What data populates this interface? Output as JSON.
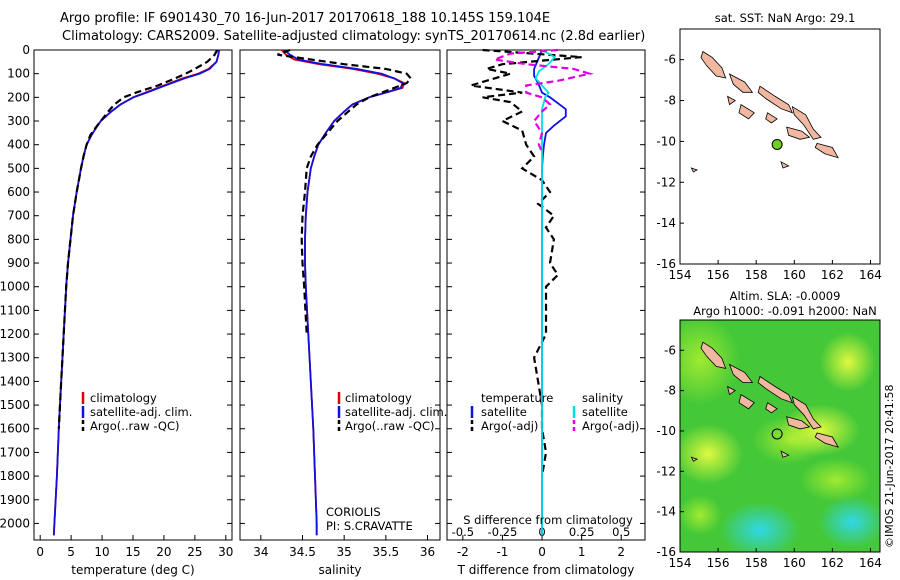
{
  "header": {
    "line1": "Argo profile: IF 6901430_70 16-Jun-2017 20170618_188 10.145S 159.104E",
    "line2": "Climatology: CARS2009. Satellite-adjusted climatology: synTS_20170614.nc (2.8d earlier)"
  },
  "colors": {
    "climatology": "#e00000",
    "satellite": "#1010e0",
    "argo": "#000000",
    "salinity_sat": "#00e0e0",
    "salinity_argo": "#e000e0",
    "land": "#f0b8a0",
    "argo_marker": "#70d020"
  },
  "legend": {
    "climatology": "climatology",
    "satellite_adj": "satellite-adj. clim.",
    "argo_raw": "Argo(..raw -QC)",
    "temperature": "temperature",
    "salinity": "salinity",
    "satellite": "satellite",
    "argo_adj": "Argo(-adj)"
  },
  "annotations": {
    "coriolis": "CORIOLIS",
    "pi": "PI: S.CRAVATTE",
    "s_diff_label": "S difference from climatology",
    "sst_title": "sat. SST: NaN Argo: 29.1",
    "sla_title1": "Altim. SLA: -0.0009",
    "sla_title2": "Argo h1000: -0.091 h2000: NaN",
    "imos_stamp": "©IMOS 21-Jun-2017 20:41:58"
  },
  "chart_data": [
    {
      "type": "line",
      "panel": "temperature",
      "xlabel": "temperature (deg C)",
      "ylabel": "",
      "xlim": [
        -1,
        31
      ],
      "ylim": [
        2070,
        0
      ],
      "xticks": [
        "0",
        "5",
        "10",
        "15",
        "20",
        "25",
        "30"
      ],
      "yticks": [
        "0",
        "100",
        "200",
        "300",
        "400",
        "500",
        "600",
        "700",
        "800",
        "900",
        "1000",
        "1100",
        "1200",
        "1300",
        "1400",
        "1500",
        "1600",
        "1700",
        "1800",
        "1900",
        "2000"
      ],
      "depth": [
        0,
        20,
        50,
        80,
        100,
        120,
        150,
        180,
        200,
        230,
        260,
        300,
        330,
        360,
        400,
        450,
        500,
        600,
        700,
        800,
        900,
        1000,
        1200,
        1400,
        1600,
        1800,
        2000,
        2050
      ],
      "series": [
        {
          "name": "climatology",
          "values": [
            28.9,
            28.8,
            28.5,
            27.2,
            25.5,
            23.0,
            20.0,
            17.0,
            15.0,
            13.0,
            11.5,
            9.8,
            9.0,
            8.3,
            7.5,
            7.0,
            6.6,
            5.9,
            5.3,
            4.9,
            4.5,
            4.2,
            3.8,
            3.4,
            3.0,
            2.7,
            2.3,
            2.2
          ]
        },
        {
          "name": "satellite-adj. clim.",
          "values": [
            28.9,
            28.8,
            28.5,
            27.4,
            25.8,
            23.3,
            20.2,
            17.2,
            15.1,
            13.0,
            11.5,
            9.8,
            9.0,
            8.3,
            7.5,
            7.0,
            6.6,
            5.9,
            5.3,
            4.9,
            4.5,
            4.2,
            3.8,
            3.4,
            3.0,
            2.7,
            2.3,
            2.2
          ]
        },
        {
          "name": "Argo(..raw -QC)",
          "values": [
            28.6,
            28.2,
            27.0,
            25.0,
            23.5,
            21.8,
            19.0,
            15.5,
            13.5,
            12.0,
            11.0,
            9.8,
            8.9,
            8.1,
            7.5,
            7.0,
            6.6,
            5.9,
            5.3,
            4.9,
            4.5,
            4.2,
            3.8,
            3.4,
            3.0,
            null,
            null,
            null
          ]
        }
      ]
    },
    {
      "type": "line",
      "panel": "salinity",
      "xlabel": "salinity",
      "xlim": [
        33.75,
        36.15
      ],
      "ylim": [
        2070,
        0
      ],
      "xticks": [
        "34",
        "34.5",
        "35",
        "35.5",
        "36"
      ],
      "depth": [
        0,
        20,
        40,
        60,
        80,
        100,
        120,
        140,
        160,
        180,
        200,
        230,
        260,
        300,
        350,
        400,
        450,
        500,
        600,
        700,
        800,
        900,
        1000,
        1200,
        1400,
        1600,
        1800,
        2000,
        2050
      ],
      "series": [
        {
          "name": "climatology",
          "values": [
            34.25,
            34.3,
            34.4,
            34.7,
            35.1,
            35.4,
            35.6,
            35.72,
            35.7,
            35.5,
            35.3,
            35.1,
            35.0,
            34.88,
            34.78,
            34.69,
            34.64,
            34.6,
            34.56,
            34.54,
            34.53,
            34.53,
            34.54,
            34.57,
            34.6,
            34.63,
            34.65,
            34.67,
            34.67
          ]
        },
        {
          "name": "satellite-adj. clim.",
          "values": [
            34.28,
            34.35,
            34.45,
            34.75,
            35.15,
            35.45,
            35.6,
            35.7,
            35.68,
            35.5,
            35.3,
            35.1,
            35.0,
            34.88,
            34.78,
            34.69,
            34.64,
            34.6,
            34.56,
            34.54,
            34.53,
            34.53,
            34.54,
            34.57,
            34.6,
            34.63,
            34.65,
            34.67,
            34.67
          ]
        },
        {
          "name": "Argo(..raw -QC)",
          "values": [
            34.35,
            34.2,
            34.6,
            35.0,
            35.5,
            35.75,
            35.8,
            35.75,
            35.6,
            35.45,
            35.3,
            35.15,
            35.05,
            34.92,
            34.8,
            34.68,
            34.6,
            34.55,
            34.53,
            34.5,
            34.49,
            34.5,
            34.52,
            34.55,
            null,
            null,
            null,
            null,
            null
          ]
        }
      ]
    },
    {
      "type": "line",
      "panel": "difference",
      "xlabel": "T difference from climatology",
      "xlabel_top": "S difference from climatology",
      "xlim": [
        -2.4,
        2.6
      ],
      "ylim": [
        2070,
        0
      ],
      "xticks": [
        "-2",
        "-1",
        "0",
        "1",
        "2"
      ],
      "xticks_top": [
        "-0.5",
        "-0.25",
        "0",
        "0.25",
        "0.5"
      ],
      "series": [
        {
          "name": "temperature satellite",
          "depth": [
            0,
            40,
            80,
            110,
            140,
            180,
            200,
            250,
            280,
            320,
            350,
            400,
            450,
            500,
            600,
            700,
            800,
            900,
            1000,
            1200,
            1500,
            1800,
            2050
          ],
          "values": [
            0.0,
            -0.1,
            -0.2,
            -0.2,
            -0.1,
            0.0,
            0.2,
            0.6,
            0.6,
            0.3,
            0.1,
            0.05,
            0.02,
            0.0,
            0.0,
            0.0,
            0.0,
            0.0,
            0.0,
            0.0,
            0.0,
            0.0,
            0.0
          ]
        },
        {
          "name": "temperature Argo(-adj)",
          "depth": [
            0,
            30,
            60,
            80,
            100,
            120,
            150,
            180,
            200,
            220,
            260,
            300,
            340,
            400,
            450,
            500,
            550,
            600,
            650,
            700,
            750,
            800,
            900,
            950,
            1000,
            1050,
            1100,
            1200,
            1300,
            1400,
            1500,
            1600,
            1700,
            1800
          ],
          "values": [
            -1.5,
            1.0,
            -1.0,
            -1.4,
            -0.8,
            -1.2,
            -1.8,
            -0.5,
            -1.5,
            -0.8,
            -0.5,
            -1.0,
            -0.5,
            -0.4,
            -0.2,
            -0.5,
            0.0,
            0.2,
            -0.1,
            0.3,
            0.1,
            0.3,
            0.2,
            0.4,
            0.1,
            0.1,
            0.1,
            0.1,
            -0.2,
            -0.1,
            0.0,
            0.0,
            0.1,
            0.0
          ]
        },
        {
          "name": "salinity satellite",
          "depth": [
            0,
            30,
            60,
            90,
            120,
            150,
            180,
            200,
            250,
            300,
            400,
            500,
            700,
            1000,
            1500,
            2050
          ],
          "values": [
            0.0,
            0.08,
            0.04,
            -0.02,
            -0.04,
            0.0,
            0.04,
            0.02,
            0.0,
            0.0,
            0.0,
            0.0,
            0.0,
            0.0,
            0.0,
            0.0
          ]
        },
        {
          "name": "salinity Argo(-adj)",
          "depth": [
            0,
            15,
            40,
            60,
            80,
            100,
            130,
            150,
            180,
            200,
            230,
            260,
            300,
            350,
            400,
            430
          ],
          "values": [
            0.1,
            -0.2,
            -0.3,
            -0.1,
            0.2,
            0.3,
            0.1,
            -0.1,
            -0.1,
            0.0,
            0.05,
            0.0,
            -0.05,
            0.0,
            -0.02,
            0.0
          ]
        }
      ]
    },
    {
      "type": "map",
      "panel": "sst-map",
      "title": "sat. SST: NaN Argo: 29.1",
      "xlim": [
        154,
        164.5
      ],
      "ylim": [
        -16,
        -4.5
      ],
      "xticks": [
        "154",
        "156",
        "158",
        "160",
        "162",
        "164"
      ],
      "yticks": [
        "-6",
        "-8",
        "-10",
        "-12",
        "-14",
        "-16"
      ],
      "argo_position": {
        "lon": 159.1,
        "lat": -10.15
      }
    },
    {
      "type": "heatmap",
      "panel": "sla-map",
      "title": "Altim. SLA: -0.0009",
      "subtitle": "Argo h1000: -0.091 h2000: NaN",
      "xlim": [
        154,
        164.5
      ],
      "ylim": [
        -16,
        -4.5
      ],
      "xticks": [
        "154",
        "156",
        "158",
        "160",
        "162",
        "164"
      ],
      "yticks": [
        "-6",
        "-8",
        "-10",
        "-12",
        "-14",
        "-16"
      ],
      "argo_position": {
        "lon": 159.1,
        "lat": -10.15
      }
    }
  ]
}
